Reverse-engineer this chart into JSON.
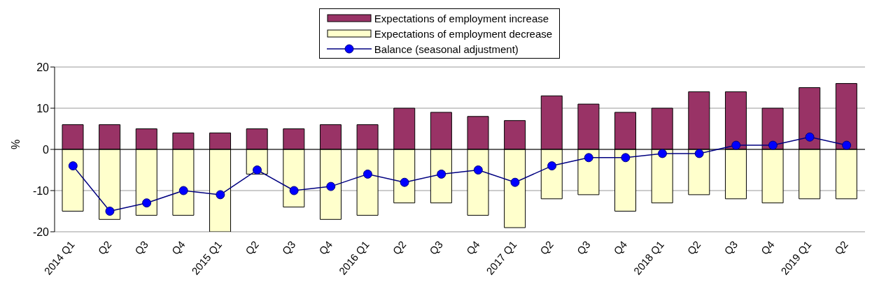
{
  "chart_data": {
    "type": "bar",
    "stacked": true,
    "ylabel": "%",
    "categories": [
      "2014 Q1",
      "Q2",
      "Q3",
      "Q4",
      "2015 Q1",
      "Q2",
      "Q3",
      "Q4",
      "2016 Q1",
      "Q2",
      "Q3",
      "Q4",
      "2017 Q1",
      "Q2",
      "Q3",
      "Q4",
      "2018 Q1",
      "Q2",
      "Q3",
      "Q4",
      "2019 Q1",
      "Q2"
    ],
    "series": [
      {
        "name": "Expectations of employment increase",
        "color": "#993366",
        "values": [
          6,
          6,
          5,
          4,
          4,
          5,
          5,
          6,
          6,
          10,
          9,
          8,
          7,
          13,
          11,
          9,
          10,
          14,
          14,
          10,
          15,
          16
        ]
      },
      {
        "name": "Expectations of employment decrease",
        "color": "#ffffcc",
        "values": [
          -15,
          -17,
          -16,
          -16,
          -20,
          -6,
          -14,
          -17,
          -16,
          -13,
          -13,
          -16,
          -19,
          -12,
          -11,
          -15,
          -13,
          -11,
          -12,
          -13,
          -12,
          -12
        ]
      },
      {
        "name": "Balance  (seasonal adjustment)",
        "type": "line",
        "color": "#0000ff",
        "marker": "circle",
        "values": [
          -4,
          -15,
          -13,
          -10,
          -11,
          -5,
          -10,
          -9,
          -6,
          -8,
          -6,
          -5,
          -8,
          -4,
          -2,
          -2,
          -1,
          -1,
          1,
          1,
          3,
          1
        ]
      }
    ],
    "ylim": [
      -20,
      20
    ],
    "yticks": [
      -20,
      -10,
      0,
      10,
      20
    ],
    "grid": "y",
    "legend": "top"
  }
}
